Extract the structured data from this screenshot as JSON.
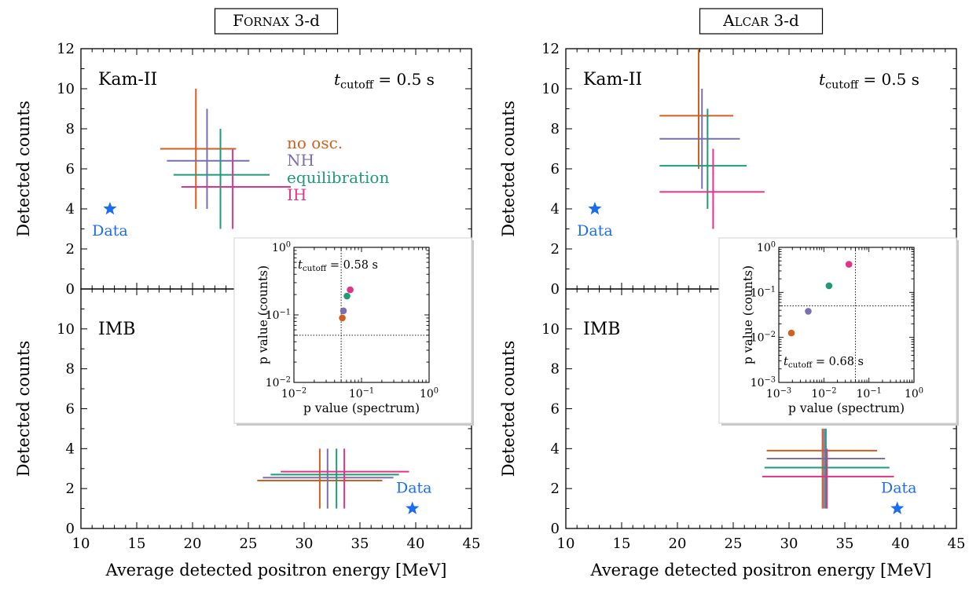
{
  "colors": {
    "no_osc": "#d25f1e",
    "nh": "#7a6fb0",
    "equilibration": "#1f9b78",
    "ih": "#e0348a",
    "data": "#1a6cf0",
    "axis": "#000000"
  },
  "chart_data": [
    {
      "type": "scatter",
      "panel_title": "FORNAX 3-d",
      "xlabel": "Average detected positron energy [MeV]",
      "xlim": [
        10,
        45
      ],
      "xticks": [
        10,
        15,
        20,
        25,
        30,
        35,
        40,
        45
      ],
      "subplots": [
        {
          "detector": "Kam-II",
          "annotation": "t_cutoff = 0.5 s",
          "ylabel": "Detected counts",
          "ylim": [
            0,
            12
          ],
          "yticks": [
            0,
            2,
            4,
            6,
            8,
            10,
            12
          ],
          "legend": [
            "no osc.",
            "NH",
            "equilibration",
            "IH"
          ],
          "series": [
            {
              "name": "no osc.",
              "x": 20.3,
              "y": 7.0,
              "xerr": [
                17.1,
                23.9
              ],
              "yerr": [
                4.0,
                10.0
              ],
              "color_key": "no_osc"
            },
            {
              "name": "NH",
              "x": 21.3,
              "y": 6.4,
              "xerr": [
                17.7,
                25.1
              ],
              "yerr": [
                4.0,
                9.0
              ],
              "color_key": "nh"
            },
            {
              "name": "equilibration",
              "x": 22.5,
              "y": 5.7,
              "xerr": [
                18.3,
                26.9
              ],
              "yerr": [
                3.0,
                8.0
              ],
              "color_key": "equilibration"
            },
            {
              "name": "IH",
              "x": 23.6,
              "y": 5.1,
              "xerr": [
                19.0,
                28.8
              ],
              "yerr": [
                3.0,
                7.0
              ],
              "color_key": "ih"
            }
          ],
          "data_point": {
            "label": "Data",
            "x": 12.6,
            "y": 4.0
          }
        },
        {
          "detector": "IMB",
          "ylabel": "Detected counts",
          "ylim": [
            0,
            12
          ],
          "yticks": [
            0,
            2,
            4,
            6,
            8,
            10
          ],
          "series": [
            {
              "name": "no osc.",
              "x": 31.4,
              "y": 2.4,
              "xerr": [
                25.8,
                37.0
              ],
              "yerr": [
                1.0,
                4.0
              ],
              "color_key": "no_osc"
            },
            {
              "name": "NH",
              "x": 32.1,
              "y": 2.55,
              "xerr": [
                26.3,
                38.0
              ],
              "yerr": [
                1.0,
                4.0
              ],
              "color_key": "nh"
            },
            {
              "name": "equilibration",
              "x": 32.9,
              "y": 2.7,
              "xerr": [
                27.0,
                38.5
              ],
              "yerr": [
                1.0,
                4.0
              ],
              "color_key": "equilibration"
            },
            {
              "name": "IH",
              "x": 33.6,
              "y": 2.85,
              "xerr": [
                27.9,
                39.4
              ],
              "yerr": [
                1.0,
                4.0
              ],
              "color_key": "ih"
            }
          ],
          "data_point": {
            "label": "Data",
            "x": 39.7,
            "y": 1.0
          }
        }
      ],
      "inset": {
        "type": "scatter",
        "xlabel": "p value (spectrum)",
        "ylabel": "p value (counts)",
        "xscale": "log",
        "yscale": "log",
        "xlim": [
          0.01,
          1
        ],
        "ylim": [
          0.01,
          1
        ],
        "xticks": [
          "10^-2",
          "10^-1",
          "10^0"
        ],
        "yticks": [
          "10^-2",
          "10^-1",
          "10^0"
        ],
        "annotation": "t_cutoff = 0.58 s",
        "threshold": 0.05,
        "points": [
          {
            "name": "no osc.",
            "x": 0.052,
            "y": 0.09,
            "color_key": "no_osc"
          },
          {
            "name": "NH",
            "x": 0.054,
            "y": 0.115,
            "color_key": "nh"
          },
          {
            "name": "equilibration",
            "x": 0.061,
            "y": 0.19,
            "color_key": "equilibration"
          },
          {
            "name": "IH",
            "x": 0.068,
            "y": 0.235,
            "color_key": "ih"
          }
        ]
      }
    },
    {
      "type": "scatter",
      "panel_title": "ALCAR 3-d",
      "xlabel": "Average detected positron energy [MeV]",
      "xlim": [
        10,
        45
      ],
      "xticks": [
        10,
        15,
        20,
        25,
        30,
        35,
        40,
        45
      ],
      "subplots": [
        {
          "detector": "Kam-II",
          "annotation": "t_cutoff = 0.5 s",
          "ylabel": "Detected counts",
          "ylim": [
            0,
            12
          ],
          "yticks": [
            0,
            2,
            4,
            6,
            8,
            10,
            12
          ],
          "series": [
            {
              "name": "no osc.",
              "x": 21.9,
              "y": 8.65,
              "xerr": [
                18.4,
                25.0
              ],
              "yerr": [
                6.0,
                12.0
              ],
              "color_key": "no_osc"
            },
            {
              "name": "NH",
              "x": 22.2,
              "y": 7.5,
              "xerr": [
                18.4,
                25.6
              ],
              "yerr": [
                5.0,
                10.0
              ],
              "color_key": "nh"
            },
            {
              "name": "equilibration",
              "x": 22.7,
              "y": 6.15,
              "xerr": [
                18.4,
                26.2
              ],
              "yerr": [
                4.0,
                9.0
              ],
              "color_key": "equilibration"
            },
            {
              "name": "IH",
              "x": 23.2,
              "y": 4.85,
              "xerr": [
                18.4,
                27.8
              ],
              "yerr": [
                3.0,
                7.0
              ],
              "color_key": "ih"
            }
          ],
          "data_point": {
            "label": "Data",
            "x": 12.6,
            "y": 4.0
          }
        },
        {
          "detector": "IMB",
          "ylabel": "Detected counts",
          "ylim": [
            0,
            12
          ],
          "yticks": [
            0,
            2,
            4,
            6,
            8,
            10
          ],
          "series": [
            {
              "name": "no osc.",
              "x": 33.0,
              "y": 3.9,
              "xerr": [
                28.0,
                37.9
              ],
              "yerr": [
                1.0,
                5.0
              ],
              "color_key": "no_osc"
            },
            {
              "name": "NH",
              "x": 33.15,
              "y": 3.5,
              "xerr": [
                28.0,
                38.6
              ],
              "yerr": [
                1.0,
                5.0
              ],
              "color_key": "nh"
            },
            {
              "name": "equilibration",
              "x": 33.3,
              "y": 3.05,
              "xerr": [
                27.8,
                39.0
              ],
              "yerr": [
                1.0,
                5.0
              ],
              "color_key": "equilibration"
            },
            {
              "name": "IH",
              "x": 33.4,
              "y": 2.6,
              "xerr": [
                27.6,
                39.4
              ],
              "yerr": [
                1.0,
                4.0
              ],
              "color_key": "ih"
            }
          ],
          "data_point": {
            "label": "Data",
            "x": 39.7,
            "y": 1.0
          }
        }
      ],
      "inset": {
        "type": "scatter",
        "xlabel": "p value (spectrum)",
        "ylabel": "p value (counts)",
        "xscale": "log",
        "yscale": "log",
        "xlim": [
          0.001,
          1
        ],
        "ylim": [
          0.001,
          1
        ],
        "xticks": [
          "10^-3",
          "10^-2",
          "10^-1",
          "10^0"
        ],
        "yticks": [
          "10^-3",
          "10^-2",
          "10^-1",
          "10^0"
        ],
        "annotation": "t_cutoff = 0.68 s",
        "threshold": 0.05,
        "points": [
          {
            "name": "no osc.",
            "x": 0.0019,
            "y": 0.0125,
            "color_key": "no_osc"
          },
          {
            "name": "NH",
            "x": 0.0045,
            "y": 0.038,
            "color_key": "nh"
          },
          {
            "name": "equilibration",
            "x": 0.013,
            "y": 0.14,
            "color_key": "equilibration"
          },
          {
            "name": "IH",
            "x": 0.036,
            "y": 0.42,
            "color_key": "ih"
          }
        ]
      }
    }
  ]
}
